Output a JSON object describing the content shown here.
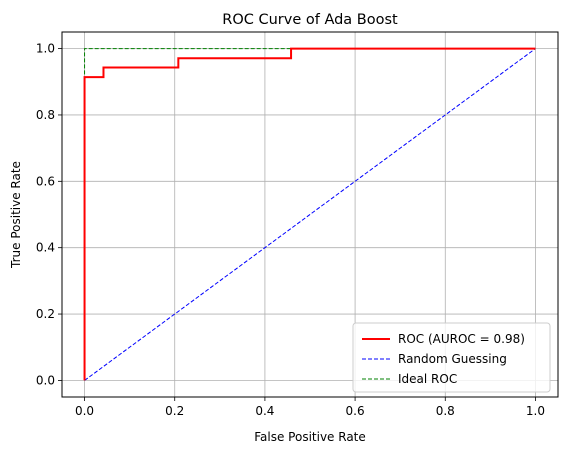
{
  "chart_data": {
    "type": "line",
    "title": "ROC Curve of Ada Boost",
    "xlabel": "False Positive Rate",
    "ylabel": "True Positive Rate",
    "xlim": [
      -0.05,
      1.05
    ],
    "ylim": [
      -0.05,
      1.05
    ],
    "xticks": [
      0.0,
      0.2,
      0.4,
      0.6,
      0.8,
      1.0
    ],
    "yticks": [
      0.0,
      0.2,
      0.4,
      0.6,
      0.8,
      1.0
    ],
    "xtick_labels": [
      "0.0",
      "0.2",
      "0.4",
      "0.6",
      "0.8",
      "1.0"
    ],
    "ytick_labels": [
      "0.0",
      "0.2",
      "0.4",
      "0.6",
      "0.8",
      "1.0"
    ],
    "grid": true,
    "legend_position": "lower-right",
    "series": [
      {
        "name": "ROC (AUROC = 0.98)",
        "color": "#ff0000",
        "style": "solid",
        "x": [
          0.0,
          0.0,
          0.0,
          0.042,
          0.042,
          0.208,
          0.208,
          0.458,
          0.458,
          1.0
        ],
        "y": [
          0.0,
          0.914,
          0.914,
          0.914,
          0.943,
          0.943,
          0.971,
          0.971,
          1.0,
          1.0
        ]
      },
      {
        "name": "Random Guessing",
        "color": "#0000ff",
        "style": "dashed",
        "x": [
          0.0,
          1.0
        ],
        "y": [
          0.0,
          1.0
        ]
      },
      {
        "name": "Ideal ROC",
        "color": "#008000",
        "style": "dashed",
        "x": [
          0.0,
          0.0,
          1.0
        ],
        "y": [
          0.0,
          1.0,
          1.0
        ]
      }
    ]
  }
}
